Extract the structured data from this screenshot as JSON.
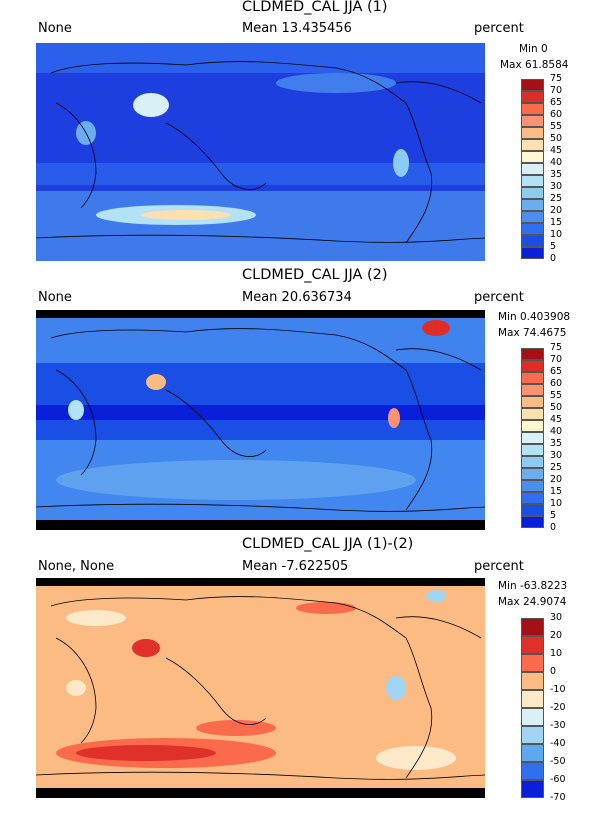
{
  "panels": [
    {
      "title": "CLDMED_CAL JJA (1)",
      "left_label": "None",
      "mean": "Mean 13.435456",
      "units": "percent",
      "min": "Min 0",
      "max": "Max 61.8584",
      "ticks": [
        "75",
        "70",
        "65",
        "60",
        "55",
        "50",
        "45",
        "40",
        "35",
        "30",
        "25",
        "20",
        "15",
        "10",
        "5",
        "0"
      ],
      "colors": [
        "#a50f15",
        "#de2d26",
        "#fb6a4a",
        "#fc9272",
        "#fdbb84",
        "#fde0b0",
        "#fff7d0",
        "#d9f0f7",
        "#b3e2f5",
        "#8ccbf2",
        "#6baef0",
        "#4a8ff0",
        "#2f6ff0",
        "#1a4fe6",
        "#0a1fd9"
      ]
    },
    {
      "title": "CLDMED_CAL JJA (2)",
      "left_label": "None",
      "mean": "Mean 20.636734",
      "units": "percent",
      "min": "Min 0.403908",
      "max": "Max 74.4675",
      "ticks": [
        "75",
        "70",
        "65",
        "60",
        "55",
        "50",
        "45",
        "40",
        "35",
        "30",
        "25",
        "20",
        "15",
        "10",
        "5",
        "0"
      ],
      "colors": [
        "#a50f15",
        "#de2d26",
        "#fb6a4a",
        "#fc9272",
        "#fdbb84",
        "#fde0b0",
        "#fff7d0",
        "#d9f0f7",
        "#b3e2f5",
        "#8ccbf2",
        "#6baef0",
        "#4a8ff0",
        "#2f6ff0",
        "#1a4fe6",
        "#0a1fd9"
      ]
    },
    {
      "title": "CLDMED_CAL JJA (1)-(2)",
      "left_label": "None, None",
      "mean": "Mean -7.622505",
      "units": "percent",
      "min": "Min -63.8223",
      "max": "Max 24.9074",
      "ticks": [
        "30",
        "20",
        "10",
        "0",
        "-10",
        "-20",
        "-30",
        "-40",
        "-50",
        "-60",
        "-70"
      ],
      "colors": [
        "#a50f15",
        "#e0302a",
        "#fb6a4a",
        "#fdbb84",
        "#fde9c8",
        "#d9f0f7",
        "#9fd4f5",
        "#5fa8f0",
        "#2f6ff0",
        "#0a1fd9"
      ]
    }
  ]
}
